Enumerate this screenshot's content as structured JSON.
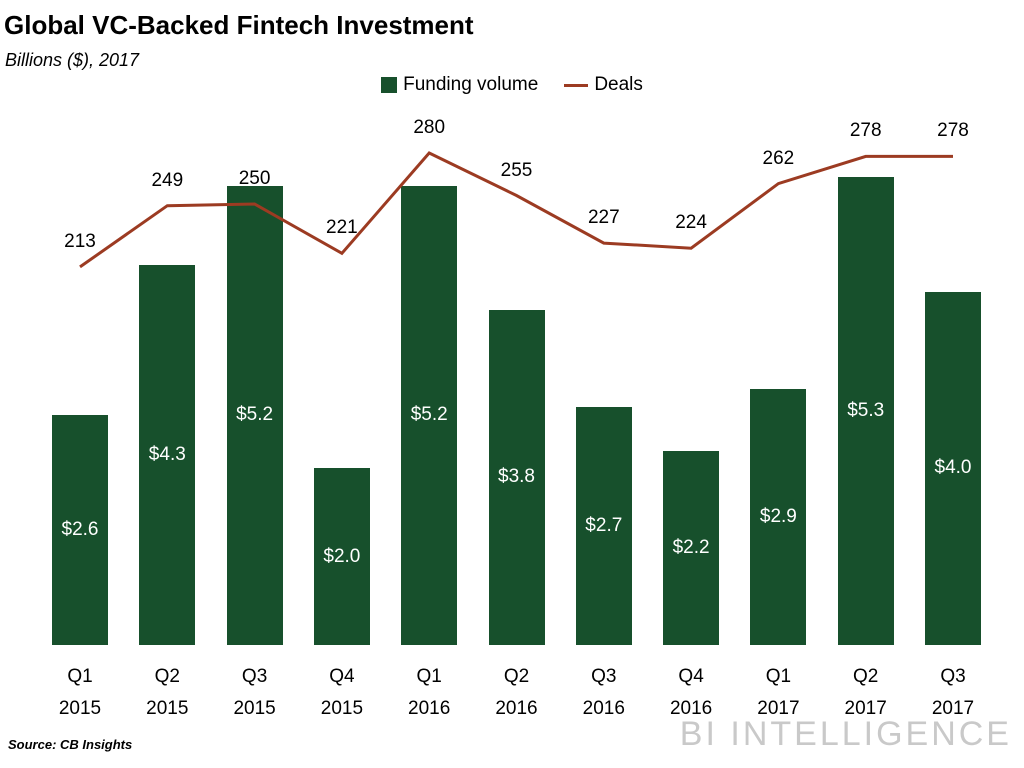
{
  "header": {
    "title": "Global VC-Backed Fintech Investment",
    "subtitle": "Billions ($), 2017"
  },
  "legend": {
    "funding": "Funding volume",
    "deals": "Deals"
  },
  "footer": {
    "source": "Source: CB Insights",
    "watermark": "BI INTELLIGENCE"
  },
  "colors": {
    "bar": "#17502c",
    "line": "#9c3b22",
    "bar_label": "#ffffff",
    "text": "#000000",
    "watermark": "#c9c9c9"
  },
  "chart_data": {
    "type": "bar",
    "title": "Global VC-Backed Fintech Investment",
    "subtitle": "Billions ($), 2017",
    "categories": [
      "Q1 2015",
      "Q2 2015",
      "Q3 2015",
      "Q4 2015",
      "Q1 2016",
      "Q2 2016",
      "Q3 2016",
      "Q4 2016",
      "Q1 2017",
      "Q2 2017",
      "Q3 2017"
    ],
    "series": [
      {
        "name": "Funding volume",
        "type": "bar",
        "unit": "billions_usd",
        "values": [
          2.6,
          4.3,
          5.2,
          2.0,
          5.2,
          3.8,
          2.7,
          2.2,
          2.9,
          5.3,
          4.0
        ],
        "labels": [
          "$2.6",
          "$4.3",
          "$5.2",
          "$2.0",
          "$5.2",
          "$3.8",
          "$2.7",
          "$2.2",
          "$2.9",
          "$5.3",
          "$4.0"
        ]
      },
      {
        "name": "Deals",
        "type": "line",
        "values": [
          213,
          249,
          250,
          221,
          280,
          255,
          227,
          224,
          262,
          278,
          278
        ]
      }
    ],
    "bar_ylim": [
      0,
      5.5
    ],
    "line_ylim": [
      200,
      290
    ],
    "grid": false,
    "legend_position": "top-center"
  }
}
